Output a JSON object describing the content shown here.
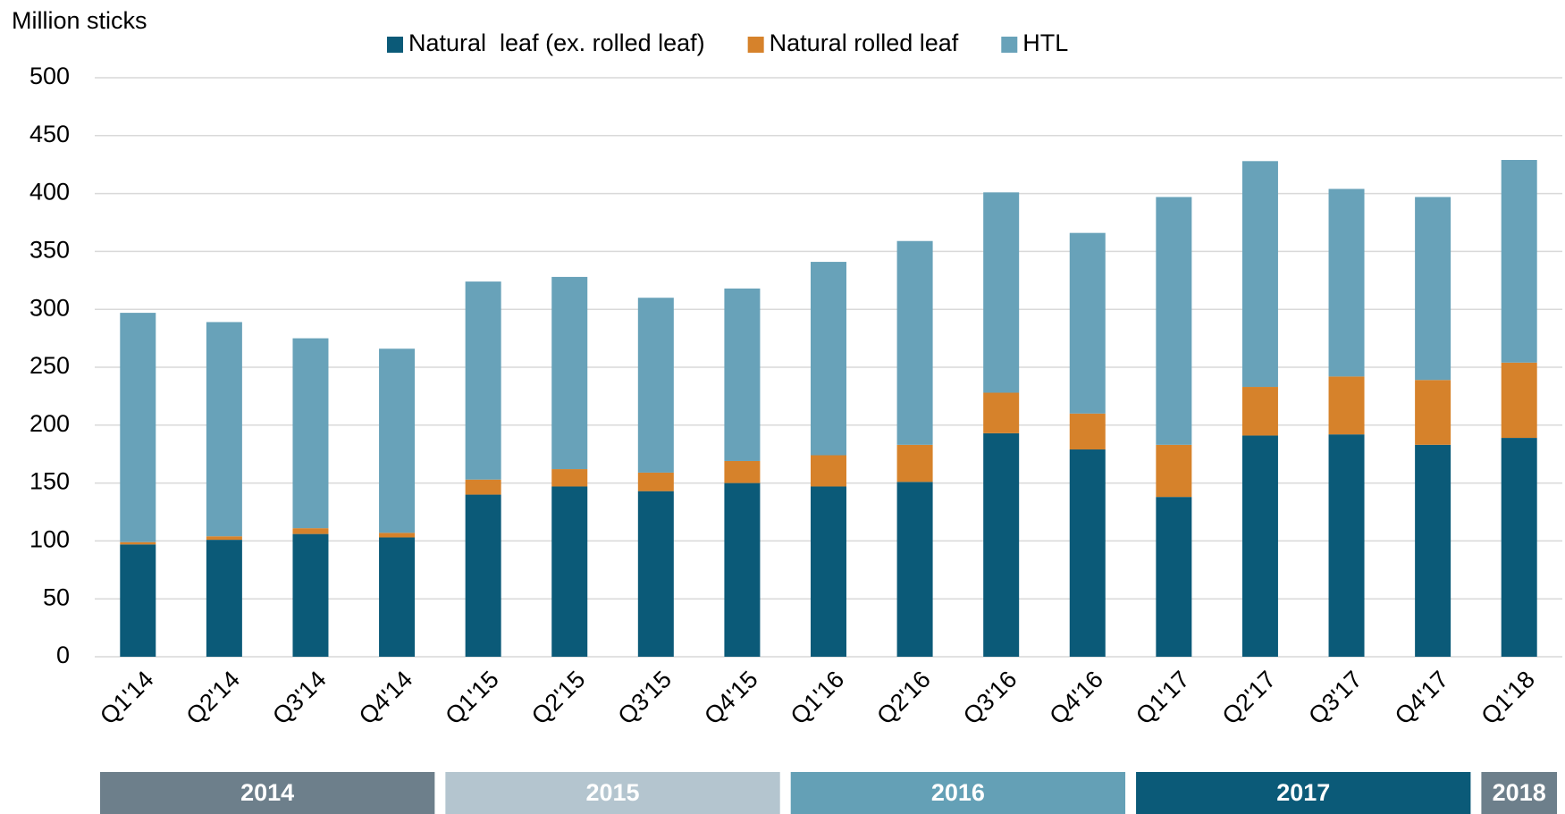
{
  "chart_data": {
    "type": "stacked_bar",
    "y_label": "Million sticks",
    "categories": [
      "Q1'14",
      "Q2'14",
      "Q3'14",
      "Q4'14",
      "Q1'15",
      "Q2'15",
      "Q3'15",
      "Q4'15",
      "Q1'16",
      "Q2'16",
      "Q3'16",
      "Q4'16",
      "Q1'17",
      "Q2'17",
      "Q3'17",
      "Q4'17",
      "Q1'18"
    ],
    "series": [
      {
        "name": "Natural  leaf (ex. rolled leaf)",
        "color": "#0b5a78",
        "values": [
          97,
          101,
          106,
          103,
          140,
          147,
          143,
          150,
          147,
          151,
          193,
          179,
          138,
          191,
          192,
          183,
          189
        ]
      },
      {
        "name": "Natural rolled leaf",
        "color": "#d6822b",
        "values": [
          2,
          3,
          5,
          4,
          13,
          15,
          16,
          19,
          27,
          32,
          35,
          31,
          45,
          42,
          50,
          56,
          65
        ]
      },
      {
        "name": "HTL",
        "color": "#68a2b9",
        "values": [
          198,
          185,
          164,
          159,
          171,
          166,
          151,
          149,
          167,
          176,
          173,
          156,
          214,
          195,
          162,
          158,
          175
        ]
      }
    ],
    "ylim": [
      0,
      500
    ],
    "yticks": [
      0,
      50,
      100,
      150,
      200,
      250,
      300,
      350,
      400,
      450,
      500
    ],
    "grid": true,
    "legend": "top",
    "years": [
      {
        "label": "2014",
        "color": "#6d7f8b"
      },
      {
        "label": "2015",
        "color": "#b4c5cf"
      },
      {
        "label": "2016",
        "color": "#64a0b6"
      },
      {
        "label": "2017",
        "color": "#0b5a78"
      },
      {
        "label": "2018",
        "color": "#6d7f8b"
      }
    ]
  }
}
